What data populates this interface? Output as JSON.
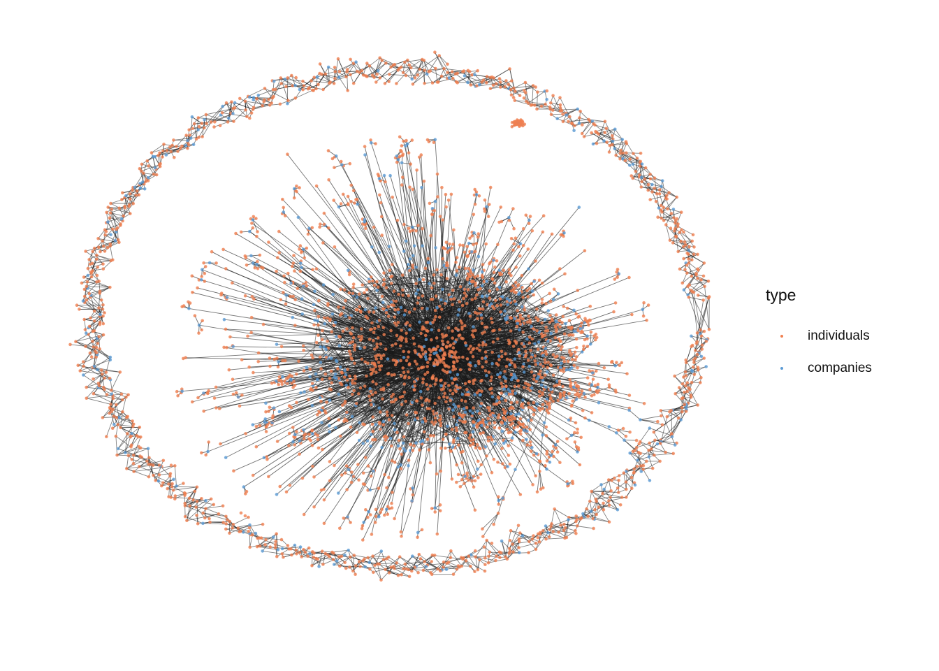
{
  "legend": {
    "title": "type",
    "items": [
      {
        "label": "individuals",
        "color": "#F08050"
      },
      {
        "label": "companies",
        "color": "#5B9BD5"
      }
    ]
  },
  "edge_color": "#1a1a1a"
}
